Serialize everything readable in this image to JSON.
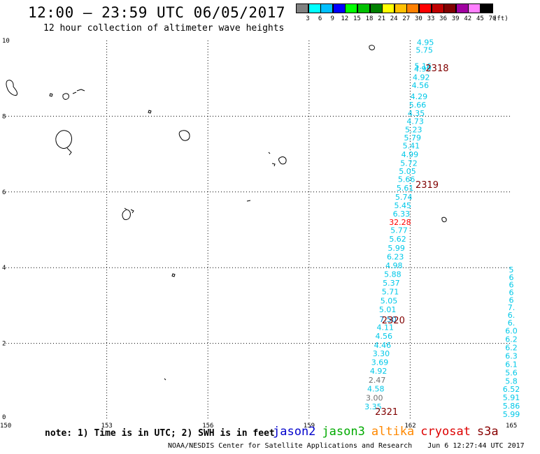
{
  "header": {
    "title": "12:00 – 23:59 UTC 06/05/2017",
    "subtitle": "12 hour collection of altimeter wave heights"
  },
  "colorbar": {
    "ticks": [
      "3",
      "6",
      "9",
      "12",
      "15",
      "18",
      "21",
      "24",
      "27",
      "30",
      "33",
      "36",
      "39",
      "42",
      "45",
      "70"
    ],
    "unit": "(ft)",
    "colors": [
      "#808080",
      "#00ffff",
      "#00c0ff",
      "#0000ff",
      "#00ff00",
      "#00c000",
      "#008000",
      "#ffff00",
      "#ffc000",
      "#ff8000",
      "#ff0000",
      "#c00000",
      "#800000",
      "#a000a0",
      "#ff80ff",
      "#000000"
    ]
  },
  "footer": {
    "note": "note: 1) Time is in UTC; 2) SWH is in feet",
    "satellites": [
      {
        "name": "jason2",
        "color": "#0000cc"
      },
      {
        "name": "jason3",
        "color": "#00aa00"
      },
      {
        "name": "altika",
        "color": "#ff8800"
      },
      {
        "name": "cryosat",
        "color": "#dd0000"
      },
      {
        "name": "s3a",
        "color": "#880000"
      }
    ],
    "credit": "NOAA/NESDIS Center for Satellite Applications and Research",
    "timestamp": "Jun  6 12:27:44 UTC 2017"
  },
  "chart_data": {
    "type": "scatter",
    "xlim": [
      150,
      165
    ],
    "ylim": [
      0,
      10
    ],
    "x_ticks": [
      "150",
      "153",
      "156",
      "159",
      "162",
      "165"
    ],
    "y_ticks": [
      "0",
      "2",
      "4",
      "6",
      "8",
      "10"
    ],
    "grid": true,
    "passes": [
      {
        "label": "2318",
        "x": 162.8,
        "y": 9.28
      },
      {
        "label": "2319",
        "x": 162.5,
        "y": 6.2
      },
      {
        "label": "2320",
        "x": 161.5,
        "y": 2.62
      },
      {
        "label": "2321",
        "x": 161.3,
        "y": 0.2
      }
    ],
    "series": [
      {
        "color": "#00c8e8",
        "points": [
          {
            "x": 162.45,
            "y": 9.95,
            "v": "4.95"
          },
          {
            "x": 162.42,
            "y": 9.75,
            "v": "5.75"
          },
          {
            "x": 162.38,
            "y": 9.33,
            "v": "5.16"
          },
          {
            "x": 162.37,
            "y": 9.25,
            "v": "4.99"
          },
          {
            "x": 162.33,
            "y": 9.03,
            "v": "4.92"
          },
          {
            "x": 162.3,
            "y": 8.82,
            "v": "4.56"
          },
          {
            "x": 162.26,
            "y": 8.52,
            "v": "4.29"
          },
          {
            "x": 162.22,
            "y": 8.3,
            "v": "5.66"
          },
          {
            "x": 162.18,
            "y": 8.08,
            "v": "4.35"
          },
          {
            "x": 162.15,
            "y": 7.87,
            "v": "4.73"
          },
          {
            "x": 162.1,
            "y": 7.65,
            "v": "5.23"
          },
          {
            "x": 162.07,
            "y": 7.44,
            "v": "5.79"
          },
          {
            "x": 162.03,
            "y": 7.22,
            "v": "5.41"
          },
          {
            "x": 161.99,
            "y": 6.99,
            "v": "4.99"
          },
          {
            "x": 161.96,
            "y": 6.76,
            "v": "5.72"
          },
          {
            "x": 161.92,
            "y": 6.55,
            "v": "5.05"
          },
          {
            "x": 161.89,
            "y": 6.34,
            "v": "5.66"
          },
          {
            "x": 161.85,
            "y": 6.11,
            "v": "5.61"
          },
          {
            "x": 161.81,
            "y": 5.87,
            "v": "5.74"
          },
          {
            "x": 161.78,
            "y": 5.65,
            "v": "5.45"
          },
          {
            "x": 161.74,
            "y": 5.42,
            "v": "6.33"
          },
          {
            "x": 161.67,
            "y": 4.99,
            "v": "5.77"
          },
          {
            "x": 161.63,
            "y": 4.76,
            "v": "5.62"
          },
          {
            "x": 161.59,
            "y": 4.52,
            "v": "5.99"
          },
          {
            "x": 161.56,
            "y": 4.29,
            "v": "6.23"
          },
          {
            "x": 161.52,
            "y": 4.06,
            "v": "4.98"
          },
          {
            "x": 161.48,
            "y": 3.83,
            "v": "5.88"
          },
          {
            "x": 161.44,
            "y": 3.6,
            "v": "5.37"
          },
          {
            "x": 161.41,
            "y": 3.37,
            "v": "5.71"
          },
          {
            "x": 161.37,
            "y": 3.13,
            "v": "5.05"
          },
          {
            "x": 161.33,
            "y": 2.9,
            "v": "5.01"
          },
          {
            "x": 161.26,
            "y": 2.43,
            "v": "4.11"
          },
          {
            "x": 161.22,
            "y": 2.2,
            "v": "4.56"
          },
          {
            "x": 161.18,
            "y": 1.96,
            "v": "4.46"
          },
          {
            "x": 161.14,
            "y": 1.73,
            "v": "3.30"
          },
          {
            "x": 161.1,
            "y": 1.5,
            "v": "3.69"
          },
          {
            "x": 161.06,
            "y": 1.27,
            "v": "4.92"
          },
          {
            "x": 160.98,
            "y": 0.8,
            "v": "4.58"
          },
          {
            "x": 160.9,
            "y": 0.33,
            "v": "3.35"
          }
        ]
      },
      {
        "color": "#0088cc",
        "points": [
          {
            "x": 161.34,
            "y": 2.64,
            "v": "7.50"
          }
        ]
      },
      {
        "color": "#ff0000",
        "points": [
          {
            "x": 161.7,
            "y": 5.2,
            "v": "32.28"
          }
        ]
      },
      {
        "color": "#707070",
        "points": [
          {
            "x": 161.02,
            "y": 1.03,
            "v": "2.47"
          },
          {
            "x": 160.94,
            "y": 0.56,
            "v": "3.00"
          }
        ]
      },
      {
        "color": "#00c8e8",
        "points": [
          {
            "x": 165.0,
            "y": 3.95,
            "v": "5"
          },
          {
            "x": 165.0,
            "y": 3.75,
            "v": "6"
          },
          {
            "x": 165.0,
            "y": 3.55,
            "v": "6"
          },
          {
            "x": 165.0,
            "y": 3.35,
            "v": "6"
          },
          {
            "x": 165.0,
            "y": 3.15,
            "v": "6"
          },
          {
            "x": 165.0,
            "y": 2.95,
            "v": "7."
          },
          {
            "x": 165.0,
            "y": 2.75,
            "v": "6."
          },
          {
            "x": 165.0,
            "y": 2.55,
            "v": "6."
          },
          {
            "x": 165.0,
            "y": 2.33,
            "v": "6.0"
          },
          {
            "x": 165.0,
            "y": 2.11,
            "v": "6.2"
          },
          {
            "x": 165.0,
            "y": 1.89,
            "v": "6.2"
          },
          {
            "x": 165.0,
            "y": 1.67,
            "v": "6.3"
          },
          {
            "x": 165.0,
            "y": 1.45,
            "v": "6.1"
          },
          {
            "x": 165.0,
            "y": 1.23,
            "v": "5.6"
          },
          {
            "x": 165.0,
            "y": 1.01,
            "v": "5.8"
          },
          {
            "x": 165.0,
            "y": 0.79,
            "v": "6.52"
          },
          {
            "x": 165.0,
            "y": 0.57,
            "v": "5.91"
          },
          {
            "x": 165.0,
            "y": 0.35,
            "v": "5.86"
          },
          {
            "x": 165.0,
            "y": 0.13,
            "v": "5.99"
          }
        ]
      }
    ]
  }
}
